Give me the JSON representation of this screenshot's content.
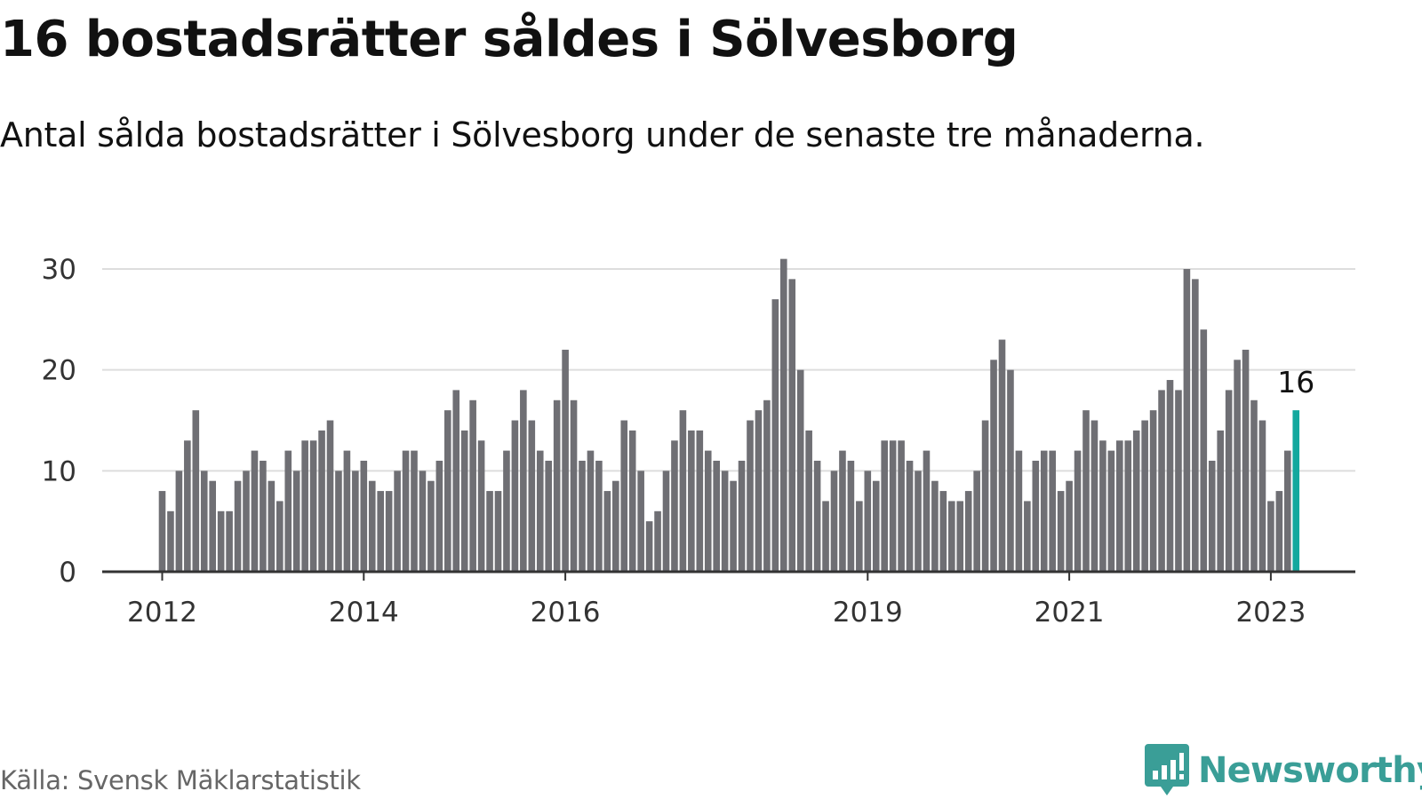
{
  "header": {
    "title": "16 bostadsrätter såldes i Sölvesborg",
    "subtitle": "Antal sålda bostadsrätter i Sölvesborg under de senaste tre månaderna."
  },
  "footer": {
    "source": "Källa: Svensk Mäklarstatistik",
    "brand": "Newsworthy",
    "brand_icon": "newsworthy-logo-icon"
  },
  "colors": {
    "bar": "#6f6f74",
    "highlight": "#14a89e",
    "gridline": "#dddddd",
    "axis": "#333333",
    "brand": "#3a9e97"
  },
  "chart_data": {
    "type": "bar",
    "start": "2012-01",
    "x_ticks": [
      {
        "label": "2012",
        "index": 0
      },
      {
        "label": "2014",
        "index": 24
      },
      {
        "label": "2016",
        "index": 48
      },
      {
        "label": "2019",
        "index": 84
      },
      {
        "label": "2021",
        "index": 108
      },
      {
        "label": "2023",
        "index": 132
      }
    ],
    "y_ticks": [
      "0",
      "10",
      "20",
      "30"
    ],
    "ylim": [
      0,
      30
    ],
    "grid": true,
    "values": [
      8,
      6,
      10,
      13,
      16,
      10,
      9,
      6,
      6,
      9,
      10,
      12,
      11,
      9,
      7,
      12,
      10,
      13,
      13,
      14,
      15,
      10,
      12,
      10,
      11,
      9,
      8,
      8,
      10,
      12,
      12,
      10,
      9,
      11,
      16,
      18,
      14,
      17,
      13,
      8,
      8,
      12,
      15,
      18,
      15,
      12,
      11,
      17,
      22,
      17,
      11,
      12,
      11,
      8,
      9,
      15,
      14,
      10,
      5,
      6,
      10,
      13,
      16,
      14,
      14,
      12,
      11,
      10,
      9,
      11,
      15,
      16,
      17,
      27,
      31,
      29,
      20,
      14,
      11,
      7,
      10,
      12,
      11,
      7,
      10,
      9,
      13,
      13,
      13,
      11,
      10,
      12,
      9,
      8,
      7,
      7,
      8,
      10,
      15,
      21,
      23,
      20,
      12,
      7,
      11,
      12,
      12,
      8,
      9,
      12,
      16,
      15,
      13,
      12,
      13,
      13,
      14,
      15,
      16,
      18,
      19,
      18,
      30,
      29,
      24,
      11,
      14,
      18,
      21,
      22,
      17,
      15,
      7,
      8,
      12,
      16
    ],
    "highlight_last": true,
    "annotation": "16"
  }
}
